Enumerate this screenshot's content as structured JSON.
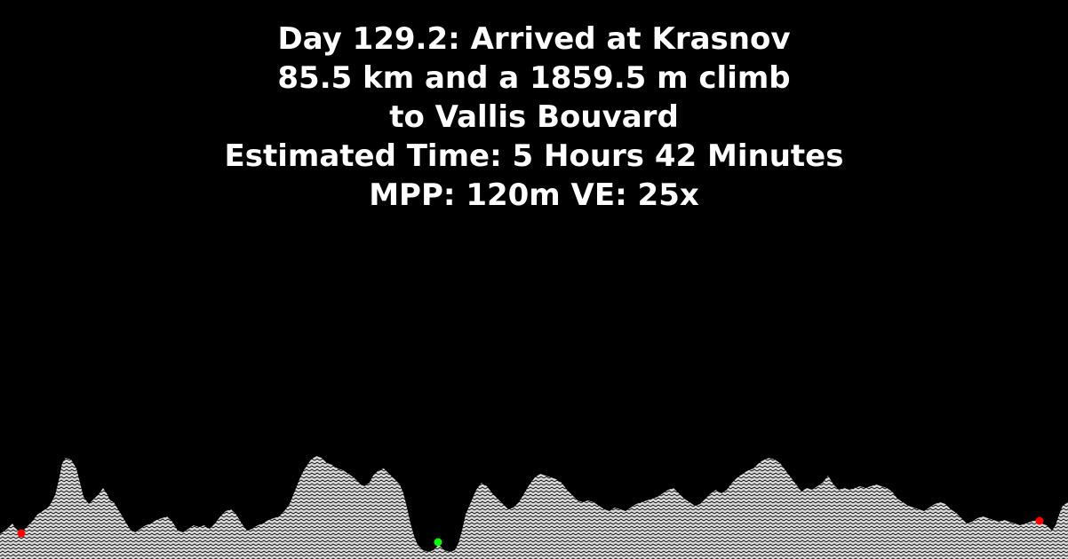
{
  "overlay": {
    "line1": "Day 129.2: Arrived at Krasnov",
    "line2": "85.5 km and a 1859.5 m climb",
    "line3": "to Vallis Bouvard",
    "line4": "Estimated Time: 5 Hours 42 Minutes",
    "line5": "MPP: 120m VE: 25x"
  },
  "colors": {
    "background": "#000000",
    "text": "#ffffff",
    "terrain_fill": "#d9d9d9",
    "terrain_hatch": "#000000",
    "endpoint_marker": "#ff0000",
    "current_marker": "#00ff00"
  }
}
